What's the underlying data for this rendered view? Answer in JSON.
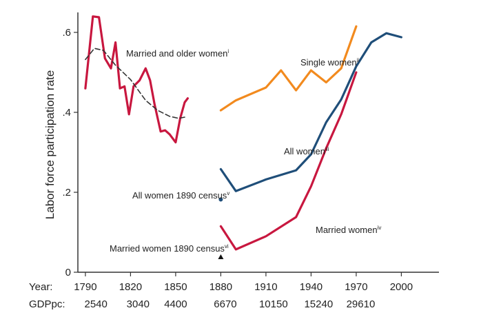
{
  "chart_data": {
    "type": "line",
    "title": "",
    "ylabel": "Labor force participation rate",
    "xlabel": "",
    "ylim": [
      0,
      0.65
    ],
    "xlim": [
      1785,
      2025
    ],
    "yticks": [
      {
        "value": 0,
        "label": "0"
      },
      {
        "value": 0.2,
        "label": ".2"
      },
      {
        "value": 0.4,
        "label": ".4"
      },
      {
        "value": 0.6,
        "label": ".6"
      }
    ],
    "x_row_label": "Year:",
    "x_ticks": [
      1790,
      1820,
      1850,
      1880,
      1910,
      1940,
      1970,
      2000
    ],
    "gdp_row_label": "GDPpc:",
    "gdp_ticks": [
      {
        "year": 1797,
        "label": "2540"
      },
      {
        "year": 1825,
        "label": "3040"
      },
      {
        "year": 1850,
        "label": "4400"
      },
      {
        "year": 1883,
        "label": "6670"
      },
      {
        "year": 1915,
        "label": "10150"
      },
      {
        "year": 1945,
        "label": "15240"
      },
      {
        "year": 1973,
        "label": "29610"
      }
    ],
    "series": [
      {
        "name": "Married and older women",
        "sup": "i",
        "color": "#c8173f",
        "style": "solid",
        "points": [
          [
            1790,
            0.46
          ],
          [
            1795,
            0.64
          ],
          [
            1799,
            0.638
          ],
          [
            1803,
            0.535
          ],
          [
            1807,
            0.51
          ],
          [
            1810,
            0.575
          ],
          [
            1813,
            0.46
          ],
          [
            1816,
            0.465
          ],
          [
            1819,
            0.395
          ],
          [
            1822,
            0.465
          ],
          [
            1826,
            0.48
          ],
          [
            1830,
            0.51
          ],
          [
            1833,
            0.48
          ],
          [
            1836,
            0.42
          ],
          [
            1840,
            0.352
          ],
          [
            1843,
            0.355
          ],
          [
            1846,
            0.345
          ],
          [
            1850,
            0.325
          ],
          [
            1853,
            0.385
          ],
          [
            1856,
            0.425
          ],
          [
            1858,
            0.435
          ]
        ]
      },
      {
        "name": "Married and older women trend",
        "color": "#333333",
        "style": "dashed",
        "points": [
          [
            1790,
            0.532
          ],
          [
            1796,
            0.56
          ],
          [
            1802,
            0.555
          ],
          [
            1810,
            0.518
          ],
          [
            1820,
            0.482
          ],
          [
            1830,
            0.43
          ],
          [
            1838,
            0.405
          ],
          [
            1846,
            0.39
          ],
          [
            1852,
            0.385
          ],
          [
            1856,
            0.388
          ]
        ]
      },
      {
        "name": "Single women",
        "sup": "ii",
        "color": "#f28a1e",
        "style": "solid",
        "points": [
          [
            1880,
            0.405
          ],
          [
            1890,
            0.43
          ],
          [
            1910,
            0.462
          ],
          [
            1920,
            0.505
          ],
          [
            1930,
            0.455
          ],
          [
            1940,
            0.505
          ],
          [
            1950,
            0.475
          ],
          [
            1960,
            0.51
          ],
          [
            1970,
            0.615
          ]
        ]
      },
      {
        "name": "All women",
        "sup": "iii",
        "color": "#1f4e79",
        "style": "solid",
        "points": [
          [
            1880,
            0.258
          ],
          [
            1890,
            0.203
          ],
          [
            1910,
            0.232
          ],
          [
            1930,
            0.255
          ],
          [
            1940,
            0.295
          ],
          [
            1950,
            0.375
          ],
          [
            1960,
            0.432
          ],
          [
            1970,
            0.515
          ],
          [
            1980,
            0.575
          ],
          [
            1990,
            0.598
          ],
          [
            2000,
            0.588
          ]
        ]
      },
      {
        "name": "Married women",
        "sup": "iv",
        "color": "#c8173f",
        "style": "solid",
        "points": [
          [
            1880,
            0.115
          ],
          [
            1890,
            0.057
          ],
          [
            1910,
            0.09
          ],
          [
            1930,
            0.138
          ],
          [
            1940,
            0.215
          ],
          [
            1950,
            0.31
          ],
          [
            1960,
            0.395
          ],
          [
            1970,
            0.5
          ]
        ]
      }
    ],
    "markers": [
      {
        "name": "All women 1890 census",
        "sup": "v",
        "shape": "circle",
        "color": "#1f4e79",
        "x": 1880,
        "y": 0.182
      },
      {
        "name": "Married women 1890 census",
        "sup": "vi",
        "shape": "triangle",
        "color": "#111111",
        "x": 1880,
        "y": 0.038
      }
    ]
  }
}
